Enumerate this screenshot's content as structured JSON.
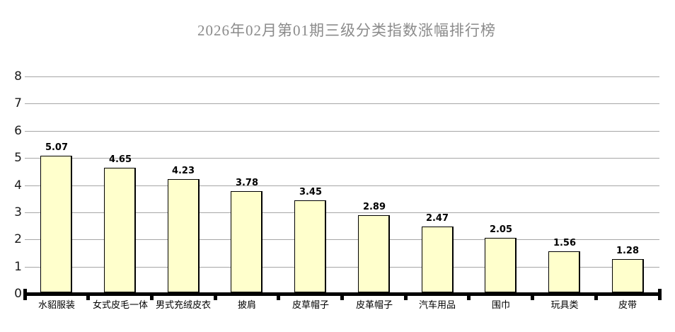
{
  "title": "2026年02月第01期三级分类指数涨幅排行榜",
  "chart_data": {
    "type": "bar",
    "title": "2026年02月第01期三级分类指数涨幅排行榜",
    "categories": [
      "水貂服装",
      "女式皮毛一体",
      "男式充绒皮衣",
      "披肩",
      "皮草帽子",
      "皮革帽子",
      "汽车用品",
      "围巾",
      "玩具类",
      "皮带"
    ],
    "values": [
      5.07,
      4.65,
      4.23,
      3.78,
      3.45,
      2.89,
      2.47,
      2.05,
      1.56,
      1.28
    ],
    "value_labels": [
      "5.07",
      "4.65",
      "4.23",
      "3.78",
      "3.45",
      "2.89",
      "2.47",
      "2.05",
      "1.56",
      "1.28"
    ],
    "xlabel": "",
    "ylabel": "",
    "ylim": [
      0,
      8
    ],
    "yticks": [
      0,
      1,
      2,
      3,
      4,
      5,
      6,
      7,
      8
    ],
    "grid": true,
    "legend": "none",
    "colors": {
      "bar_fill": "#ffffcc",
      "bar_border": "#000000",
      "grid_line": "#a6a6a6",
      "axis_line": "#000000",
      "title_text": "#8b8b8b",
      "label_text": "#000000",
      "background": "#ffffff"
    }
  }
}
